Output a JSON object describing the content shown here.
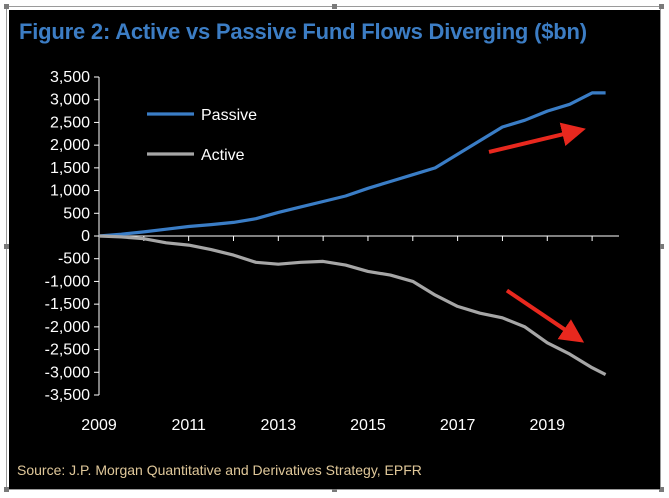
{
  "header": {
    "title": "Figure 2: Active vs Passive Fund Flows Diverging ($bn)"
  },
  "footer": {
    "source": "Source: J.P. Morgan Quantitative and Derivatives Strategy, EPFR"
  },
  "colors": {
    "background": "#000000",
    "passive": "#3a7dc6",
    "active": "#a6a6a6",
    "arrow": "#e8281e",
    "title": "#3c7dc4",
    "source": "#e0c89a"
  },
  "chart_data": {
    "type": "line",
    "title": "Figure 2: Active vs Passive Fund Flows Diverging ($bn)",
    "xlabel": "",
    "ylabel": "",
    "xlim": [
      2009,
      2020.6
    ],
    "ylim": [
      -3500,
      3500
    ],
    "x_ticks": [
      "2009",
      "2011",
      "2013",
      "2015",
      "2017",
      "2019"
    ],
    "y_ticks": [
      "3,500",
      "3,000",
      "2,500",
      "2,000",
      "1,500",
      "1,000",
      "500",
      "0",
      "-500",
      "-1,000",
      "-1,500",
      "-2,000",
      "-2,500",
      "-3,000",
      "-3,500"
    ],
    "legend_position": "top-left",
    "grid": false,
    "series": [
      {
        "name": "Passive",
        "color": "#3a7dc6",
        "x": [
          2009,
          2009.5,
          2010,
          2010.5,
          2011,
          2011.5,
          2012,
          2012.5,
          2013,
          2013.5,
          2014,
          2014.5,
          2015,
          2015.5,
          2016,
          2016.5,
          2017,
          2017.5,
          2018,
          2018.5,
          2019,
          2019.5,
          2020,
          2020.3
        ],
        "values": [
          0,
          40,
          90,
          150,
          210,
          250,
          300,
          380,
          520,
          640,
          760,
          880,
          1050,
          1200,
          1350,
          1500,
          1800,
          2100,
          2400,
          2550,
          2750,
          2900,
          3150,
          3150
        ]
      },
      {
        "name": "Active",
        "color": "#a6a6a6",
        "x": [
          2009,
          2009.5,
          2010,
          2010.5,
          2011,
          2011.5,
          2012,
          2012.5,
          2013,
          2013.5,
          2014,
          2014.5,
          2015,
          2015.5,
          2016,
          2016.5,
          2017,
          2017.5,
          2018,
          2018.5,
          2019,
          2019.5,
          2020,
          2020.3
        ],
        "values": [
          0,
          -20,
          -60,
          -150,
          -200,
          -300,
          -420,
          -580,
          -620,
          -580,
          -560,
          -640,
          -780,
          -860,
          -1000,
          -1300,
          -1550,
          -1700,
          -1800,
          -2000,
          -2350,
          -2600,
          -2900,
          -3050
        ]
      }
    ],
    "annotations": [
      {
        "type": "arrow",
        "label": "passive-up-arrow",
        "from": [
          2017.7,
          1850
        ],
        "to": [
          2019.6,
          2300
        ]
      },
      {
        "type": "arrow",
        "label": "active-down-arrow",
        "from": [
          2018.1,
          -1200
        ],
        "to": [
          2019.6,
          -2200
        ]
      }
    ]
  }
}
